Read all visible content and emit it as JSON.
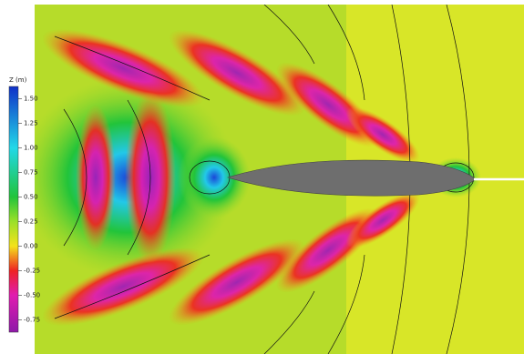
{
  "chart_data": {
    "type": "contour",
    "colorbar_label": "Z (m)",
    "zlim": [
      -0.875,
      1.625
    ],
    "zticks": [
      {
        "value": 1.5,
        "label": "1.50"
      },
      {
        "value": 1.25,
        "label": "1.25"
      },
      {
        "value": 1,
        "label": "1.00"
      },
      {
        "value": 0.75,
        "label": "0.75"
      },
      {
        "value": 0.5,
        "label": "0.50"
      },
      {
        "value": 0.25,
        "label": "0.25"
      },
      {
        "value": 0,
        "label": "0.00"
      },
      {
        "value": -0.25,
        "label": "-0.25"
      },
      {
        "value": -0.5,
        "label": "-0.50"
      },
      {
        "value": -0.75,
        "label": "-0.75"
      }
    ],
    "colorscale": [
      {
        "value": -0.875,
        "color": "#8e1aa8"
      },
      {
        "value": -0.5,
        "color": "#e01bb0"
      },
      {
        "value": -0.25,
        "color": "#ee2222"
      },
      {
        "value": 0,
        "color": "#f4e21a"
      },
      {
        "value": 0.25,
        "color": "#9be028"
      },
      {
        "value": 0.5,
        "color": "#22c43a"
      },
      {
        "value": 1,
        "color": "#22d8e8"
      },
      {
        "value": 1.625,
        "color": "#1030c8"
      }
    ]
  }
}
